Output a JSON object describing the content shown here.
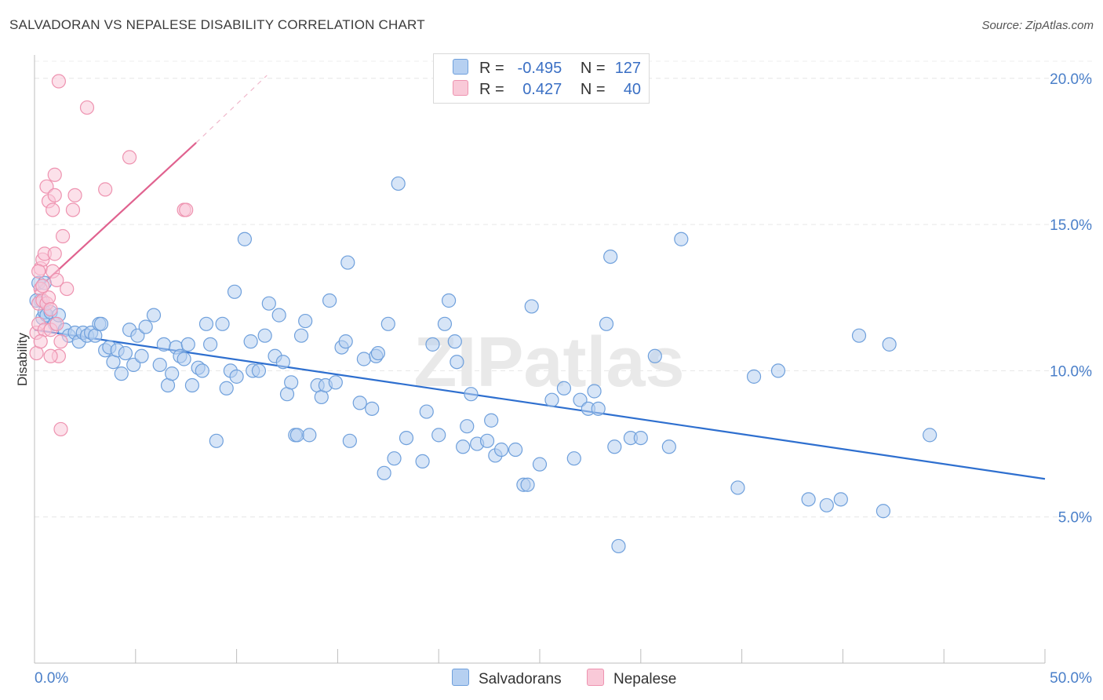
{
  "title": "SALVADORAN VS NEPALESE DISABILITY CORRELATION CHART",
  "source": "Source: ZipAtlas.com",
  "watermark": "ZIPatlas",
  "legend": {
    "salvadoran": {
      "r_label": "R =",
      "r_value": "-0.495",
      "n_label": "N =",
      "n_value": "127",
      "color": "#a9c8ee"
    },
    "nepalese": {
      "r_label": "R =",
      "r_value": "0.427",
      "n_label": "N =",
      "n_value": "40",
      "color": "#f6b9cc"
    }
  },
  "bottom_legend": {
    "salvadoran": "Salvadorans",
    "nepalese": "Nepalese"
  },
  "chart_data": {
    "type": "scatter",
    "title": "SALVADORAN VS NEPALESE DISABILITY CORRELATION CHART",
    "xlabel": "",
    "ylabel": "Disability",
    "xlim": [
      0,
      50
    ],
    "ylim": [
      0,
      20.8
    ],
    "x_tick_labels": [
      "0.0%",
      "50.0%"
    ],
    "y_ticks": [
      5,
      10,
      15,
      20
    ],
    "y_tick_labels": [
      "5.0%",
      "10.0%",
      "15.0%",
      "20.0%"
    ],
    "x_minor_ticks": [
      5,
      10,
      15,
      20,
      25,
      30,
      35,
      40,
      45,
      50
    ],
    "grid": true,
    "legend_position": "top-center",
    "series": [
      {
        "name": "Salvadorans",
        "color": "#6fa0dc",
        "fill": "#b6d0f1",
        "trend": {
          "x": [
            0,
            50
          ],
          "y": [
            11.4,
            6.3
          ],
          "color": "#2e6fcf"
        },
        "points": [
          [
            0.2,
            13.0
          ],
          [
            0.3,
            12.4
          ],
          [
            0.4,
            11.8
          ],
          [
            0.5,
            12.0
          ],
          [
            0.6,
            11.9
          ],
          [
            0.8,
            12.0
          ],
          [
            1.0,
            11.6
          ],
          [
            1.2,
            11.9
          ],
          [
            1.5,
            11.4
          ],
          [
            1.7,
            11.2
          ],
          [
            2.0,
            11.3
          ],
          [
            2.2,
            11.0
          ],
          [
            2.4,
            11.3
          ],
          [
            2.6,
            11.2
          ],
          [
            2.8,
            11.3
          ],
          [
            3.0,
            11.2
          ],
          [
            3.2,
            11.6
          ],
          [
            3.3,
            11.6
          ],
          [
            3.5,
            10.7
          ],
          [
            3.7,
            10.8
          ],
          [
            3.9,
            10.3
          ],
          [
            4.1,
            10.7
          ],
          [
            4.3,
            9.9
          ],
          [
            4.5,
            10.6
          ],
          [
            4.7,
            11.4
          ],
          [
            4.9,
            10.2
          ],
          [
            5.1,
            11.2
          ],
          [
            5.3,
            10.5
          ],
          [
            5.5,
            11.5
          ],
          [
            5.9,
            11.9
          ],
          [
            6.2,
            10.2
          ],
          [
            6.4,
            10.9
          ],
          [
            6.6,
            9.5
          ],
          [
            6.8,
            9.9
          ],
          [
            7.0,
            10.8
          ],
          [
            7.2,
            10.5
          ],
          [
            7.4,
            10.4
          ],
          [
            7.6,
            10.9
          ],
          [
            7.8,
            9.5
          ],
          [
            8.1,
            10.1
          ],
          [
            8.3,
            10.0
          ],
          [
            8.5,
            11.6
          ],
          [
            8.7,
            10.9
          ],
          [
            9.0,
            7.6
          ],
          [
            9.3,
            11.6
          ],
          [
            9.5,
            9.4
          ],
          [
            9.7,
            10.0
          ],
          [
            9.9,
            12.7
          ],
          [
            10.0,
            9.8
          ],
          [
            10.4,
            14.5
          ],
          [
            10.7,
            11.0
          ],
          [
            10.8,
            10.0
          ],
          [
            11.1,
            10.0
          ],
          [
            11.4,
            11.2
          ],
          [
            11.6,
            12.3
          ],
          [
            11.9,
            10.5
          ],
          [
            12.1,
            11.9
          ],
          [
            12.3,
            10.3
          ],
          [
            12.5,
            9.2
          ],
          [
            12.7,
            9.6
          ],
          [
            12.9,
            7.8
          ],
          [
            13.0,
            7.8
          ],
          [
            13.2,
            11.2
          ],
          [
            13.4,
            11.7
          ],
          [
            13.6,
            7.8
          ],
          [
            14.0,
            9.5
          ],
          [
            14.2,
            9.1
          ],
          [
            14.4,
            9.5
          ],
          [
            14.6,
            12.4
          ],
          [
            14.9,
            9.6
          ],
          [
            15.2,
            10.8
          ],
          [
            15.4,
            11.0
          ],
          [
            15.5,
            13.7
          ],
          [
            15.6,
            7.6
          ],
          [
            16.1,
            8.9
          ],
          [
            16.3,
            10.4
          ],
          [
            16.7,
            8.7
          ],
          [
            16.9,
            10.5
          ],
          [
            17.0,
            10.6
          ],
          [
            17.5,
            11.6
          ],
          [
            17.8,
            7.0
          ],
          [
            17.3,
            6.5
          ],
          [
            18.0,
            16.4
          ],
          [
            18.4,
            7.7
          ],
          [
            19.2,
            6.9
          ],
          [
            19.4,
            8.6
          ],
          [
            19.7,
            10.9
          ],
          [
            20.0,
            7.8
          ],
          [
            20.3,
            11.6
          ],
          [
            20.5,
            12.4
          ],
          [
            20.8,
            11.0
          ],
          [
            20.9,
            10.3
          ],
          [
            21.2,
            7.4
          ],
          [
            21.4,
            8.1
          ],
          [
            21.6,
            9.2
          ],
          [
            21.9,
            7.5
          ],
          [
            22.4,
            7.6
          ],
          [
            22.6,
            8.3
          ],
          [
            22.8,
            7.1
          ],
          [
            23.1,
            7.3
          ],
          [
            23.8,
            7.3
          ],
          [
            24.2,
            6.1
          ],
          [
            24.4,
            6.1
          ],
          [
            24.6,
            12.2
          ],
          [
            25.0,
            6.8
          ],
          [
            25.6,
            9.0
          ],
          [
            26.2,
            9.4
          ],
          [
            26.7,
            7.0
          ],
          [
            27.0,
            9.0
          ],
          [
            27.4,
            8.7
          ],
          [
            27.7,
            9.3
          ],
          [
            27.9,
            8.7
          ],
          [
            28.3,
            11.6
          ],
          [
            28.5,
            13.9
          ],
          [
            28.7,
            7.4
          ],
          [
            28.9,
            4.0
          ],
          [
            29.5,
            7.7
          ],
          [
            30.0,
            7.7
          ],
          [
            30.7,
            10.5
          ],
          [
            31.4,
            7.4
          ],
          [
            32.0,
            14.5
          ],
          [
            34.8,
            6.0
          ],
          [
            35.6,
            9.8
          ],
          [
            36.8,
            10.0
          ],
          [
            38.3,
            5.6
          ],
          [
            39.2,
            5.4
          ],
          [
            39.9,
            5.6
          ],
          [
            40.8,
            11.2
          ],
          [
            42.3,
            10.9
          ],
          [
            42.0,
            5.2
          ],
          [
            44.3,
            7.8
          ],
          [
            0.1,
            12.4
          ],
          [
            0.5,
            13.0
          ]
        ]
      },
      {
        "name": "Nepalese",
        "color": "#ee93b0",
        "fill": "#f9c9d8",
        "trend": {
          "x": [
            0,
            8
          ],
          "y": [
            12.7,
            17.8
          ],
          "color": "#e0628f",
          "dashed_extension": {
            "x": [
              8,
              11.5
            ],
            "y": [
              17.8,
              20.1
            ]
          }
        },
        "points": [
          [
            0.1,
            11.3
          ],
          [
            0.1,
            10.6
          ],
          [
            0.2,
            11.6
          ],
          [
            0.2,
            12.3
          ],
          [
            0.3,
            13.5
          ],
          [
            0.3,
            12.8
          ],
          [
            0.4,
            12.4
          ],
          [
            0.4,
            13.8
          ],
          [
            0.5,
            14.0
          ],
          [
            0.5,
            11.4
          ],
          [
            0.6,
            12.3
          ],
          [
            0.6,
            16.3
          ],
          [
            0.7,
            15.8
          ],
          [
            0.7,
            12.5
          ],
          [
            0.8,
            12.1
          ],
          [
            0.8,
            11.4
          ],
          [
            0.9,
            13.4
          ],
          [
            0.9,
            15.5
          ],
          [
            1.0,
            14.0
          ],
          [
            1.0,
            16.7
          ],
          [
            1.0,
            16.0
          ],
          [
            1.1,
            13.1
          ],
          [
            1.1,
            11.6
          ],
          [
            1.2,
            10.5
          ],
          [
            1.3,
            11.0
          ],
          [
            1.2,
            19.9
          ],
          [
            1.4,
            14.6
          ],
          [
            1.6,
            12.8
          ],
          [
            1.9,
            15.5
          ],
          [
            2.0,
            16.0
          ],
          [
            2.6,
            19.0
          ],
          [
            3.5,
            16.2
          ],
          [
            4.7,
            17.3
          ],
          [
            7.4,
            15.5
          ],
          [
            7.5,
            15.5
          ],
          [
            1.3,
            8.0
          ],
          [
            0.2,
            13.4
          ],
          [
            0.4,
            12.9
          ],
          [
            0.3,
            11.0
          ],
          [
            0.8,
            10.5
          ]
        ]
      }
    ]
  }
}
